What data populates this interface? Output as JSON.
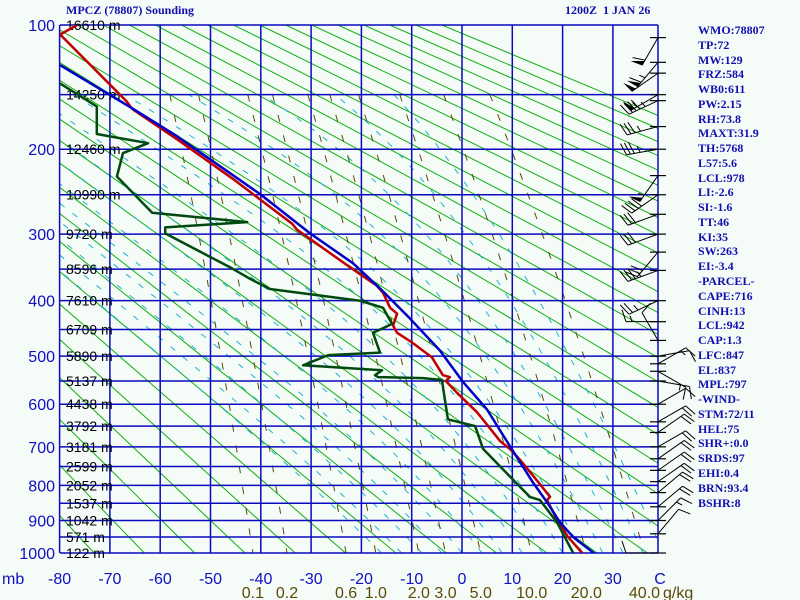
{
  "header": {
    "title": "MPCZ (78807) Sounding",
    "time": "1200Z  1 JAN 26"
  },
  "stats": [
    "WMO:78807",
    "TP:72",
    "MW:129",
    "FRZ:584",
    "WB0:611",
    "PW:2.15",
    "RH:73.8",
    "MAXT:31.9",
    "TH:5768",
    "L57:5.6",
    "LCL:978",
    "LI:-2.6",
    "SI:-1.6",
    "TT:46",
    "KI:35",
    "SW:263",
    "EI:-3.4",
    "-PARCEL-",
    "CAPE:716",
    "CINH:13",
    "LCL:942",
    "CAP:1.3",
    "LFC:847",
    "EL:837",
    "MPL:797",
    "-WIND-",
    "STM:72/11",
    "HEL:75",
    "SHR+:0.0",
    "SRDS:97",
    "EHI:0.4",
    "BRN:93.4",
    "BSHR:8"
  ],
  "colors": {
    "grid": "#0a0ac0",
    "dry_adiabat": "#10b010",
    "moist_adiabat": "#20b0d0",
    "mixing_ratio": "#5a4a08",
    "temperature": "#c00000",
    "dewpoint": "#004a10",
    "parcel": "#0000c8",
    "height_label": "#000000",
    "axis_label": "#1010c0",
    "wind": "#000000"
  },
  "chart_data": {
    "type": "line",
    "diagram": "thermodynamic sounding (Stuve)",
    "title": "MPCZ (78807) Sounding",
    "pressure_unit": "mb",
    "temperature_unit": "C",
    "mixing_ratio_unit": "g/kg",
    "ylim": [
      1000,
      100
    ],
    "xlim": [
      -80,
      39
    ],
    "grid": true,
    "pressure_grid": [
      100,
      150,
      200,
      250,
      300,
      350,
      400,
      450,
      500,
      550,
      600,
      650,
      700,
      750,
      800,
      850,
      900,
      950,
      1000
    ],
    "pressure_labels": [
      "100",
      "200",
      "300",
      "400",
      "500",
      "600",
      "700",
      "800",
      "900",
      "1000"
    ],
    "temperature_ticks": [
      -80,
      -70,
      -60,
      -50,
      -40,
      -30,
      -20,
      -10,
      0,
      10,
      20,
      30
    ],
    "temperature_tick_labels": [
      "-80",
      "-70",
      "-60",
      "-50",
      "-40",
      "-30",
      "-20",
      "-10",
      "0",
      "10",
      "20",
      "30",
      "C"
    ],
    "mixing_ratio_lines": [
      0.1,
      0.2,
      0.6,
      1.0,
      2.0,
      3.0,
      5.0,
      10.0,
      20.0,
      40.0
    ],
    "mixing_ratio_labels": [
      "0.1",
      "0.2",
      "0.6",
      "1.0",
      "2.0",
      "3.0",
      "5.0",
      "10.0",
      "20.0",
      "40.0",
      "g/kg"
    ],
    "height_labels": [
      {
        "p": 100,
        "text": "16610 m"
      },
      {
        "p": 150,
        "text": "14250 m"
      },
      {
        "p": 200,
        "text": "12460 m"
      },
      {
        "p": 250,
        "text": "10990 m"
      },
      {
        "p": 300,
        "text": "9720 m"
      },
      {
        "p": 350,
        "text": "8596 m"
      },
      {
        "p": 400,
        "text": "7610 m"
      },
      {
        "p": 450,
        "text": "6709 m"
      },
      {
        "p": 500,
        "text": "5890 m"
      },
      {
        "p": 550,
        "text": "5137 m"
      },
      {
        "p": 600,
        "text": "4438 m"
      },
      {
        "p": 650,
        "text": "3792 m"
      },
      {
        "p": 700,
        "text": "3181 m"
      },
      {
        "p": 750,
        "text": "2599 m"
      },
      {
        "p": 800,
        "text": "2052 m"
      },
      {
        "p": 850,
        "text": "1537 m"
      },
      {
        "p": 900,
        "text": "1042 m"
      },
      {
        "p": 950,
        "text": "571 m"
      },
      {
        "p": 1000,
        "text": "122 m"
      }
    ],
    "series": [
      {
        "name": "temperature",
        "points": [
          [
            100,
            -76.5
          ],
          [
            106,
            -79.9
          ],
          [
            156,
            -66.6
          ],
          [
            162,
            -65.6
          ],
          [
            192,
            -56.1
          ],
          [
            231,
            -45.7
          ],
          [
            286,
            -33.8
          ],
          [
            294,
            -32.8
          ],
          [
            347,
            -22.3
          ],
          [
            376,
            -16.9
          ],
          [
            387,
            -15.7
          ],
          [
            412,
            -14.3
          ],
          [
            422,
            -12.9
          ],
          [
            443,
            -13.7
          ],
          [
            456,
            -12.9
          ],
          [
            474,
            -9.9
          ],
          [
            502,
            -6.0
          ],
          [
            538,
            -3.8
          ],
          [
            542,
            -2.4
          ],
          [
            550,
            -3.2
          ],
          [
            575,
            -1.0
          ],
          [
            618,
            3.0
          ],
          [
            650,
            5.2
          ],
          [
            686,
            7.6
          ],
          [
            705,
            9.5
          ],
          [
            732,
            11.5
          ],
          [
            797,
            15.5
          ],
          [
            832,
            17.5
          ],
          [
            841,
            16.9
          ],
          [
            897,
            18.9
          ],
          [
            950,
            21.1
          ],
          [
            1000,
            23.9
          ]
        ]
      },
      {
        "name": "dewpoint",
        "points": [
          [
            141,
            -79.9
          ],
          [
            160,
            -72.6
          ],
          [
            185,
            -72.6
          ],
          [
            194,
            -62.4
          ],
          [
            204,
            -67.4
          ],
          [
            229,
            -68.6
          ],
          [
            272,
            -61.6
          ],
          [
            284,
            -42.7
          ],
          [
            291,
            -59.0
          ],
          [
            299,
            -59.0
          ],
          [
            349,
            -45.7
          ],
          [
            365,
            -42.1
          ],
          [
            381,
            -38.2
          ],
          [
            400,
            -20.3
          ],
          [
            412,
            -15.7
          ],
          [
            440,
            -13.9
          ],
          [
            456,
            -17.7
          ],
          [
            493,
            -16.3
          ],
          [
            498,
            -26.6
          ],
          [
            518,
            -31.6
          ],
          [
            528,
            -15.9
          ],
          [
            538,
            -17.3
          ],
          [
            542,
            -16.7
          ],
          [
            544,
            -7.8
          ],
          [
            548,
            -4.0
          ],
          [
            634,
            -2.8
          ],
          [
            650,
            2.6
          ],
          [
            705,
            4.2
          ],
          [
            776,
            9.5
          ],
          [
            832,
            13.5
          ],
          [
            841,
            15.5
          ],
          [
            906,
            18.9
          ],
          [
            1000,
            22.1
          ]
        ]
      },
      {
        "name": "parcel",
        "points": [
          [
            127,
            -79.9
          ],
          [
            162,
            -65.4
          ],
          [
            187,
            -56.7
          ],
          [
            249,
            -40.2
          ],
          [
            299,
            -30.2
          ],
          [
            341,
            -21.7
          ],
          [
            380,
            -16.3
          ],
          [
            431,
            -10.3
          ],
          [
            489,
            -4.4
          ],
          [
            552,
            0.2
          ],
          [
            612,
            5.0
          ],
          [
            698,
            9.5
          ],
          [
            792,
            14.1
          ],
          [
            847,
            16.9
          ],
          [
            906,
            19.5
          ],
          [
            950,
            22.1
          ],
          [
            1000,
            26.2
          ]
        ]
      }
    ],
    "winds": [
      {
        "p": 108,
        "dir": 210,
        "kt": 60
      },
      {
        "p": 125,
        "dir": 220,
        "kt": 65
      },
      {
        "p": 133,
        "dir": 235,
        "kt": 55
      },
      {
        "p": 150,
        "dir": 240,
        "kt": 55
      },
      {
        "p": 155,
        "dir": 245,
        "kt": 45
      },
      {
        "p": 178,
        "dir": 255,
        "kt": 35
      },
      {
        "p": 200,
        "dir": 260,
        "kt": 35
      },
      {
        "p": 228,
        "dir": 215,
        "kt": 55
      },
      {
        "p": 250,
        "dir": 235,
        "kt": 40
      },
      {
        "p": 274,
        "dir": 250,
        "kt": 30
      },
      {
        "p": 300,
        "dir": 250,
        "kt": 30
      },
      {
        "p": 325,
        "dir": 220,
        "kt": 30
      },
      {
        "p": 352,
        "dir": 250,
        "kt": 35
      },
      {
        "p": 400,
        "dir": 245,
        "kt": 25
      },
      {
        "p": 436,
        "dir": 270,
        "kt": 15
      },
      {
        "p": 470,
        "dir": 330,
        "kt": 10
      },
      {
        "p": 500,
        "dir": 80,
        "kt": 10
      },
      {
        "p": 515,
        "dir": 60,
        "kt": 15
      },
      {
        "p": 530,
        "dir": 120,
        "kt": 15
      },
      {
        "p": 550,
        "dir": 100,
        "kt": 10
      },
      {
        "p": 600,
        "dir": 60,
        "kt": 10
      },
      {
        "p": 640,
        "dir": 60,
        "kt": 20
      },
      {
        "p": 665,
        "dir": 55,
        "kt": 20
      },
      {
        "p": 700,
        "dir": 60,
        "kt": 20
      },
      {
        "p": 730,
        "dir": 55,
        "kt": 20
      },
      {
        "p": 760,
        "dir": 55,
        "kt": 20
      },
      {
        "p": 790,
        "dir": 55,
        "kt": 20
      },
      {
        "p": 820,
        "dir": 50,
        "kt": 20
      },
      {
        "p": 860,
        "dir": 50,
        "kt": 20
      },
      {
        "p": 900,
        "dir": 45,
        "kt": 15
      },
      {
        "p": 940,
        "dir": 40,
        "kt": 10
      },
      {
        "p": 1000,
        "dir": 270,
        "kt": 10
      }
    ]
  }
}
